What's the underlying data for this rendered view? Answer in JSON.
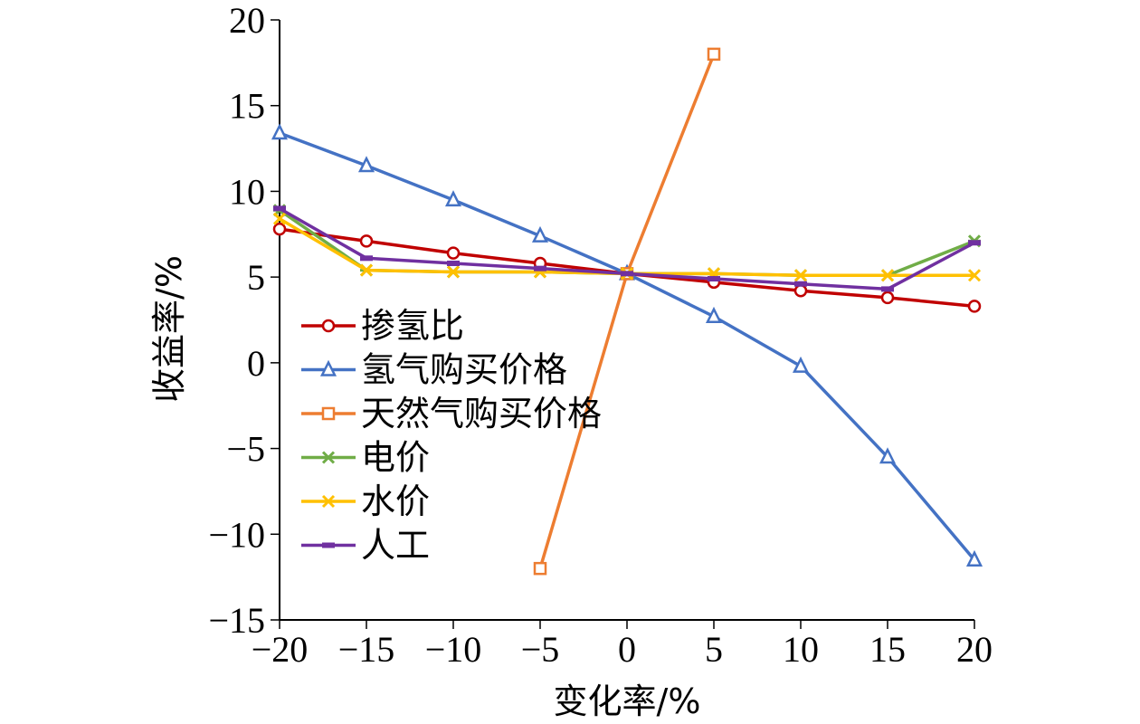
{
  "chart_data": {
    "type": "line",
    "xlabel": "变化率/%",
    "ylabel": "收益率/%",
    "xlim": [
      -20,
      20
    ],
    "ylim": [
      -15,
      20
    ],
    "xticks": [
      -20,
      -15,
      -10,
      -5,
      0,
      5,
      10,
      15,
      20
    ],
    "yticks": [
      20,
      15,
      10,
      5,
      0,
      -5,
      -10,
      -15
    ],
    "xtick_labels": [
      "−20",
      "−15",
      "−10",
      "−5",
      "0",
      "5",
      "10",
      "15",
      "20"
    ],
    "ytick_labels": [
      "20",
      "15",
      "10",
      "5",
      "0",
      "−5",
      "−10",
      "−15"
    ],
    "grid": false,
    "legend_position": "left",
    "series": [
      {
        "name": "掺氢比",
        "color": "#C00000",
        "marker": "circle",
        "x": [
          -20,
          -15,
          -10,
          -5,
          0,
          5,
          10,
          15,
          20
        ],
        "y": [
          7.8,
          7.1,
          6.4,
          5.8,
          5.2,
          4.7,
          4.2,
          3.8,
          3.3
        ]
      },
      {
        "name": "氢气购买价格",
        "color": "#4472C4",
        "marker": "triangle",
        "x": [
          -20,
          -15,
          -10,
          -5,
          0,
          5,
          10,
          15,
          20
        ],
        "y": [
          13.4,
          11.5,
          9.5,
          7.4,
          5.2,
          2.7,
          -0.2,
          -5.5,
          -11.5
        ]
      },
      {
        "name": "天然气购买价格",
        "color": "#ED7D31",
        "marker": "square",
        "x": [
          -5,
          0,
          5
        ],
        "y": [
          -12.0,
          5.2,
          18.0
        ]
      },
      {
        "name": "电价",
        "color": "#70AD47",
        "marker": "star",
        "x": [
          -20,
          -15,
          -10,
          -5,
          0,
          5,
          10,
          15,
          20
        ],
        "y": [
          8.9,
          5.4,
          5.3,
          5.3,
          5.2,
          5.2,
          5.1,
          5.1,
          7.1
        ]
      },
      {
        "name": "水价",
        "color": "#FFC000",
        "marker": "x",
        "x": [
          -20,
          -15,
          -10,
          -5,
          0,
          5,
          10,
          15,
          20
        ],
        "y": [
          8.4,
          5.4,
          5.3,
          5.3,
          5.2,
          5.2,
          5.1,
          5.1,
          5.1
        ]
      },
      {
        "name": "人工",
        "color": "#7030A0",
        "marker": "bar",
        "x": [
          -20,
          -15,
          -10,
          -5,
          0,
          5,
          10,
          15,
          20
        ],
        "y": [
          9.0,
          6.1,
          5.8,
          5.5,
          5.2,
          4.9,
          4.6,
          4.3,
          7.0
        ]
      }
    ]
  }
}
